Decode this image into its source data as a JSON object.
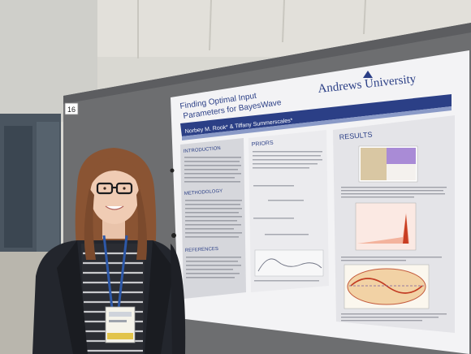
{
  "photo": {
    "board_number": "16",
    "poster": {
      "title": "Finding Optimal Input\nParameters for BayesWave",
      "authors": "Norbey M. Rook* & Tiffany Summerscales*",
      "university": "Andrews University",
      "sections": {
        "introduction": "INTRODUCTION",
        "methodology": "METHODOLOGY",
        "references": "REFERENCES",
        "priors": "PRIORS",
        "results": "RESULTS"
      }
    },
    "badge_label": "",
    "colors": {
      "poster_banner": "#2b3f86",
      "board": "#6d6e70",
      "hair": "#8a5433",
      "coat": "#23262d"
    }
  }
}
